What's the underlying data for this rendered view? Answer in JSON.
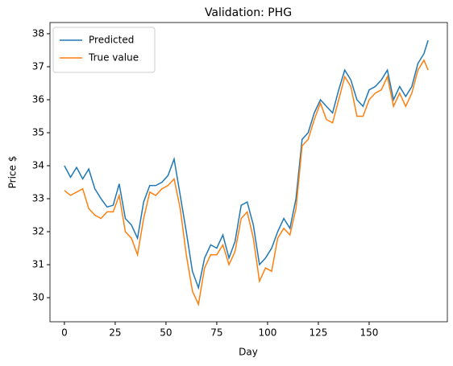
{
  "chart_data": {
    "type": "line",
    "title": "Validation: PHG",
    "x_label": "Day",
    "y_label": "Price $",
    "x": [
      0,
      3,
      6,
      9,
      12,
      15,
      18,
      21,
      24,
      27,
      30,
      33,
      36,
      39,
      42,
      45,
      48,
      51,
      54,
      57,
      60,
      63,
      66,
      69,
      72,
      75,
      78,
      81,
      84,
      87,
      90,
      93,
      96,
      99,
      102,
      105,
      108,
      111,
      114,
      117,
      120,
      123,
      126,
      129,
      132,
      135,
      138,
      141,
      144,
      147,
      150,
      153,
      156,
      159,
      162,
      165,
      168,
      171,
      174,
      177,
      179
    ],
    "series": [
      {
        "name": "Predicted",
        "color": "#1f77b4",
        "values": [
          34.0,
          33.65,
          33.95,
          33.6,
          33.9,
          33.3,
          33.0,
          32.75,
          32.8,
          33.45,
          32.4,
          32.2,
          31.8,
          32.9,
          33.4,
          33.4,
          33.5,
          33.7,
          34.2,
          33.1,
          32.0,
          30.8,
          30.3,
          31.2,
          31.6,
          31.5,
          31.9,
          31.2,
          31.7,
          32.8,
          32.9,
          32.2,
          31.0,
          31.2,
          31.5,
          32.0,
          32.4,
          32.1,
          33.0,
          34.8,
          35.0,
          35.6,
          36.0,
          35.8,
          35.6,
          36.3,
          36.9,
          36.6,
          36.0,
          35.8,
          36.3,
          36.4,
          36.6,
          36.9,
          36.0,
          36.4,
          36.1,
          36.4,
          37.1,
          37.4,
          37.8
        ]
      },
      {
        "name": "True value",
        "color": "#ff7f0e",
        "values": [
          33.25,
          33.1,
          33.2,
          33.3,
          32.7,
          32.5,
          32.4,
          32.6,
          32.6,
          33.1,
          32.0,
          31.8,
          31.3,
          32.4,
          33.2,
          33.1,
          33.3,
          33.4,
          33.6,
          32.7,
          31.3,
          30.2,
          29.8,
          30.9,
          31.3,
          31.3,
          31.6,
          31.0,
          31.4,
          32.4,
          32.6,
          31.8,
          30.5,
          30.9,
          30.8,
          31.8,
          32.1,
          31.9,
          32.7,
          34.6,
          34.8,
          35.4,
          35.9,
          35.4,
          35.3,
          36.0,
          36.7,
          36.4,
          35.5,
          35.5,
          36.0,
          36.2,
          36.3,
          36.7,
          35.8,
          36.2,
          35.8,
          36.2,
          36.9,
          37.2,
          36.9
        ]
      }
    ],
    "xlim": [
      -7.1,
      188.5
    ],
    "ylim": [
      29.27,
      38.34
    ],
    "xticks": [
      0,
      25,
      50,
      75,
      100,
      125,
      150
    ],
    "yticks": [
      30,
      31,
      32,
      33,
      34,
      35,
      36,
      37,
      38
    ],
    "grid": false,
    "legend": "upper left"
  }
}
